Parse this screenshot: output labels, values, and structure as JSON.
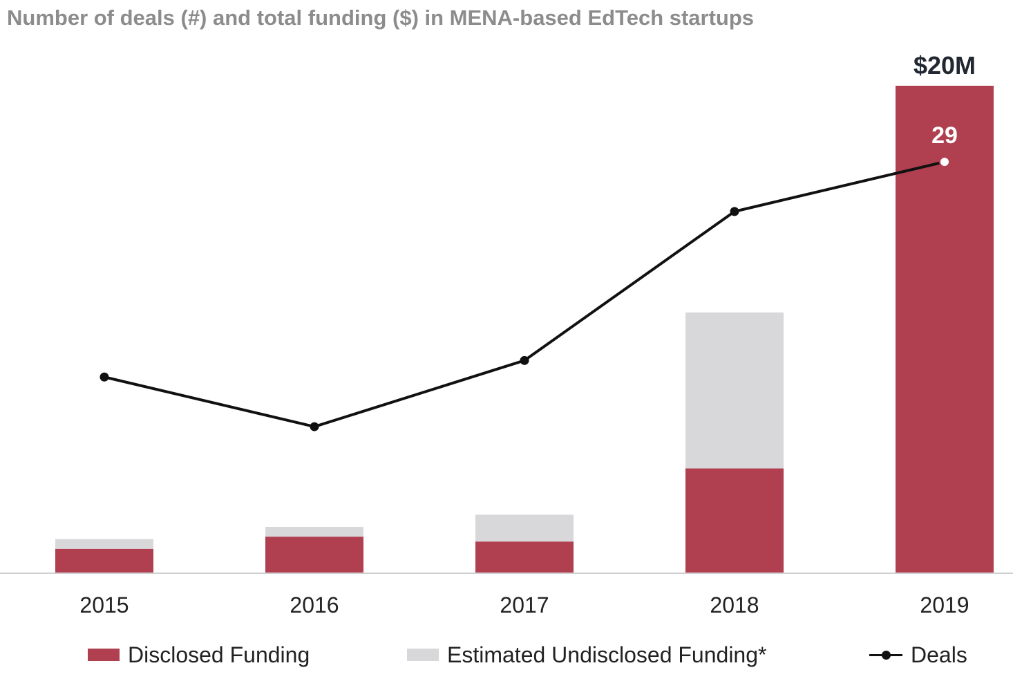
{
  "chart_data": {
    "type": "bar",
    "title": "Number of deals (#) and total funding ($) in MENA-based EdTech startups",
    "categories": [
      "2015",
      "2016",
      "2017",
      "2018",
      "2019"
    ],
    "series": [
      {
        "name": "Disclosed Funding",
        "kind": "bar-stacked",
        "unit": "$M",
        "values": [
          1.0,
          1.5,
          1.3,
          4.3,
          20.0
        ]
      },
      {
        "name": "Estimated Undisclosed Funding*",
        "kind": "bar-stacked",
        "unit": "$M",
        "values": [
          0.4,
          0.4,
          1.1,
          6.4,
          0.0
        ]
      },
      {
        "name": "Deals",
        "kind": "line",
        "unit": "#",
        "values": [
          16,
          13,
          17,
          26,
          29
        ]
      }
    ],
    "bar_ylim": [
      0,
      20
    ],
    "line_ylim": [
      0,
      40
    ],
    "annotations": {
      "top_bar_label": "$20M",
      "last_point_label": "29"
    },
    "legend": [
      "Disclosed Funding",
      "Estimated Undisclosed Funding*",
      "Deals"
    ],
    "legend_position": "bottom",
    "grid": false,
    "colors": {
      "disclosed": "#b03f50",
      "undisclosed": "#d8d8da",
      "deals": "#111111",
      "title": "#8c8c8c",
      "axis": "#d0d0d0"
    }
  }
}
